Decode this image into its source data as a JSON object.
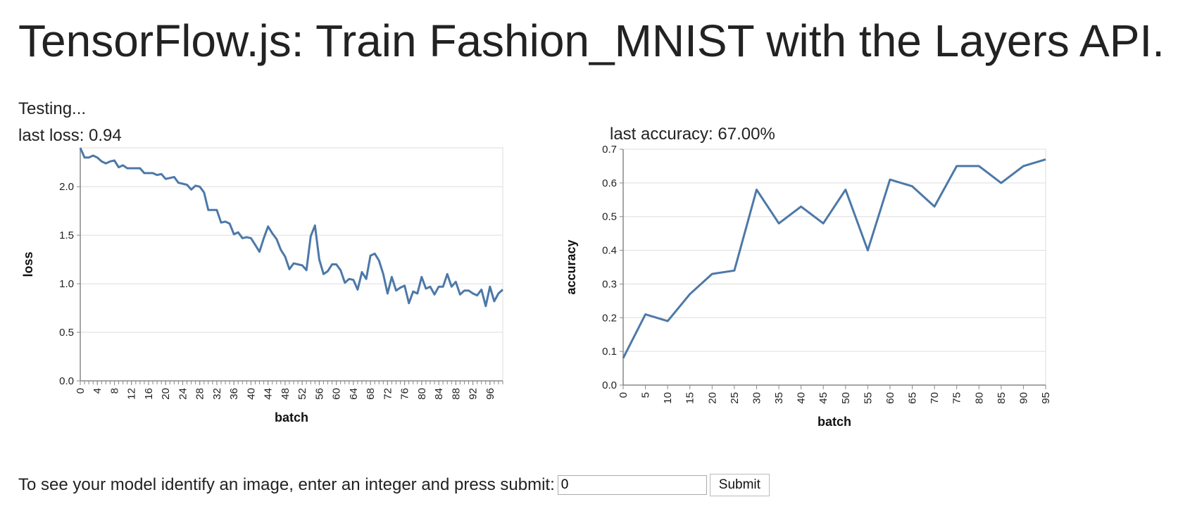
{
  "page": {
    "title": "TensorFlow.js: Train Fashion_MNIST with the Layers API.",
    "status": "Testing...",
    "last_loss_label": "last loss: 0.94",
    "last_accuracy_label": "last accuracy: 67.00%"
  },
  "form": {
    "prompt": "To see your model identify an image, enter an integer and press submit:",
    "input_value": "0",
    "submit_label": "Submit"
  },
  "colors": {
    "line": "#4c78a8",
    "grid": "#dddddd",
    "axis": "#888888"
  },
  "chart_data": [
    {
      "type": "line",
      "xlabel": "batch",
      "ylabel": "loss",
      "xlim": [
        0,
        99
      ],
      "ylim": [
        0,
        2.4
      ],
      "y_ticks": [
        0.0,
        0.5,
        1.0,
        1.5,
        2.0
      ],
      "x_ticks": [
        0,
        4,
        8,
        12,
        16,
        20,
        24,
        28,
        32,
        36,
        40,
        44,
        48,
        52,
        56,
        60,
        64,
        68,
        72,
        76,
        80,
        84,
        88,
        92,
        96
      ],
      "grid": true,
      "series": [
        {
          "x": [
            0,
            1,
            2,
            3,
            4,
            5,
            6,
            7,
            8,
            9,
            10,
            11,
            12,
            13,
            14,
            15,
            16,
            17,
            18,
            19,
            20,
            21,
            22,
            23,
            24,
            25,
            26,
            27,
            28,
            29,
            30,
            31,
            32,
            33,
            34,
            35,
            36,
            37,
            38,
            39,
            40,
            41,
            42,
            43,
            44,
            45,
            46,
            47,
            48,
            49,
            50,
            51,
            52,
            53,
            54,
            55,
            56,
            57,
            58,
            59,
            60,
            61,
            62,
            63,
            64,
            65,
            66,
            67,
            68,
            69,
            70,
            71,
            72,
            73,
            74,
            75,
            76,
            77,
            78,
            79,
            80,
            81,
            82,
            83,
            84,
            85,
            86,
            87,
            88,
            89,
            90,
            91,
            92,
            93,
            94,
            95,
            96,
            97,
            98,
            99
          ],
          "values": [
            2.4,
            2.3,
            2.3,
            2.32,
            2.3,
            2.26,
            2.24,
            2.26,
            2.27,
            2.2,
            2.22,
            2.19,
            2.19,
            2.19,
            2.19,
            2.14,
            2.14,
            2.14,
            2.12,
            2.13,
            2.08,
            2.09,
            2.1,
            2.04,
            2.03,
            2.02,
            1.97,
            2.01,
            2.0,
            1.94,
            1.76,
            1.76,
            1.76,
            1.63,
            1.64,
            1.62,
            1.51,
            1.53,
            1.47,
            1.48,
            1.47,
            1.4,
            1.33,
            1.47,
            1.59,
            1.52,
            1.46,
            1.35,
            1.28,
            1.15,
            1.21,
            1.2,
            1.19,
            1.14,
            1.49,
            1.6,
            1.25,
            1.1,
            1.13,
            1.2,
            1.2,
            1.14,
            1.01,
            1.05,
            1.04,
            0.94,
            1.12,
            1.05,
            1.29,
            1.31,
            1.24,
            1.1,
            0.9,
            1.07,
            0.93,
            0.96,
            0.98,
            0.8,
            0.92,
            0.9,
            1.07,
            0.95,
            0.97,
            0.89,
            0.97,
            0.97,
            1.1,
            0.97,
            1.02,
            0.89,
            0.93,
            0.93,
            0.9,
            0.88,
            0.94,
            0.77,
            0.97,
            0.82,
            0.9,
            0.94
          ]
        }
      ]
    },
    {
      "type": "line",
      "xlabel": "batch",
      "ylabel": "accuracy",
      "xlim": [
        0,
        95
      ],
      "ylim": [
        0,
        0.7
      ],
      "y_ticks": [
        0.0,
        0.1,
        0.2,
        0.3,
        0.4,
        0.5,
        0.6,
        0.7
      ],
      "x_ticks": [
        0,
        5,
        10,
        15,
        20,
        25,
        30,
        35,
        40,
        45,
        50,
        55,
        60,
        65,
        70,
        75,
        80,
        85,
        90,
        95
      ],
      "grid": true,
      "series": [
        {
          "x": [
            0,
            5,
            10,
            15,
            20,
            25,
            30,
            35,
            40,
            45,
            50,
            55,
            60,
            65,
            70,
            75,
            80,
            85,
            90,
            95
          ],
          "values": [
            0.08,
            0.21,
            0.19,
            0.27,
            0.33,
            0.34,
            0.58,
            0.48,
            0.53,
            0.48,
            0.58,
            0.4,
            0.61,
            0.59,
            0.53,
            0.65,
            0.65,
            0.6,
            0.65,
            0.67
          ]
        }
      ]
    }
  ]
}
